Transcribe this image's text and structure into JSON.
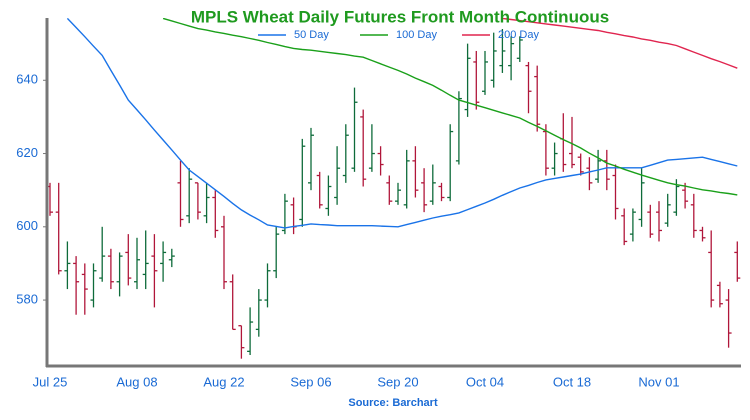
{
  "chart_data": {
    "type": "ohlc",
    "title": "MPLS Wheat Daily Futures Front Month Continuous",
    "source": "Source: Barchart",
    "categories": [
      "Jul 25",
      null,
      null,
      null,
      null,
      null,
      null,
      null,
      null,
      null,
      "Aug 08",
      null,
      null,
      null,
      null,
      null,
      null,
      null,
      null,
      null,
      "Aug 22",
      null,
      null,
      null,
      null,
      null,
      null,
      null,
      null,
      null,
      "Sep 06",
      null,
      null,
      null,
      null,
      null,
      null,
      null,
      null,
      null,
      "Sep 20",
      null,
      null,
      null,
      null,
      null,
      null,
      null,
      null,
      null,
      "Oct 04",
      null,
      null,
      null,
      null,
      null,
      null,
      null,
      null,
      null,
      "Oct 18",
      null,
      null,
      null,
      null,
      null,
      null,
      null,
      null,
      null,
      "Nov 01",
      null,
      null,
      null,
      null,
      null,
      null,
      null,
      null,
      null
    ],
    "ohlc": {
      "up_color": "#0e6b3a",
      "down_color": "#b0163a",
      "open": [
        611,
        604,
        588,
        590,
        587,
        580,
        586,
        592,
        585,
        593,
        585,
        587,
        592,
        590,
        591,
        612,
        603,
        612,
        603,
        608,
        600,
        585,
        573,
        566,
        572,
        580,
        588,
        599,
        606,
        602,
        612,
        614,
        605,
        608,
        614,
        616,
        630,
        616,
        620,
        612,
        607,
        606,
        618,
        612,
        607,
        611,
        608,
        618,
        632,
        645,
        637,
        640,
        644,
        644,
        646,
        644,
        641,
        626,
        616,
        624,
        620,
        619,
        616,
        613,
        618,
        614,
        603,
        598,
        602,
        604,
        604,
        601,
        604,
        610,
        606,
        599,
        593,
        584,
        580,
        593
      ],
      "high": [
        612,
        612,
        596,
        592,
        590,
        590,
        600,
        594,
        593,
        598,
        597,
        599,
        598,
        596,
        594,
        618,
        616,
        612,
        612,
        610,
        603,
        587,
        573,
        578,
        583,
        590,
        600,
        609,
        608,
        624,
        627,
        615,
        614,
        622,
        628,
        638,
        632,
        628,
        622,
        614,
        612,
        621,
        622,
        616,
        617,
        612,
        628,
        637,
        650,
        648,
        648,
        653,
        654,
        652,
        652,
        645,
        644,
        628,
        623,
        631,
        630,
        620,
        619,
        621,
        621,
        617,
        605,
        605,
        616,
        606,
        607,
        609,
        613,
        612,
        609,
        600,
        599,
        585,
        583,
        596
      ],
      "low": [
        603,
        587,
        583,
        576,
        576,
        578,
        585,
        583,
        581,
        584,
        583,
        583,
        578,
        585,
        589,
        600,
        601,
        602,
        601,
        597,
        583,
        572,
        564,
        565,
        570,
        578,
        586,
        598,
        598,
        600,
        610,
        605,
        603,
        606,
        612,
        615,
        611,
        615,
        614,
        606,
        606,
        605,
        608,
        604,
        606,
        607,
        607,
        617,
        630,
        632,
        636,
        638,
        642,
        640,
        645,
        631,
        626,
        614,
        614,
        615,
        616,
        614,
        610,
        612,
        610,
        602,
        595,
        596,
        600,
        597,
        596,
        600,
        603,
        605,
        597,
        596,
        578,
        578,
        567,
        585
      ],
      "close": [
        604,
        588,
        590,
        585,
        583,
        588,
        592,
        585,
        592,
        586,
        591,
        590,
        588,
        593,
        592,
        602,
        613,
        604,
        608,
        599,
        585,
        572,
        567,
        574,
        580,
        588,
        598,
        607,
        600,
        622,
        625,
        606,
        611,
        616,
        625,
        634,
        613,
        620,
        617,
        607,
        610,
        618,
        610,
        606,
        612,
        608,
        626,
        635,
        646,
        634,
        645,
        648,
        648,
        650,
        651,
        637,
        628,
        616,
        620,
        617,
        617,
        615,
        612,
        618,
        613,
        605,
        596,
        604,
        612,
        598,
        599,
        606,
        611,
        607,
        599,
        597,
        580,
        579,
        571,
        586
      ]
    },
    "series": [
      {
        "name": "50 Day",
        "color": "#1a73e8",
        "values": [
          null,
          null,
          656.9,
          654.4,
          651.9,
          649.3,
          646.8,
          642.7,
          638.7,
          634.6,
          631.9,
          629.2,
          626.4,
          623.7,
          621.0,
          618.2,
          615.5,
          613.7,
          611.9,
          610.1,
          608.3,
          606.4,
          604.6,
          603.2,
          601.9,
          600.5,
          600.1,
          599.7,
          600.1,
          600.4,
          600.8,
          600.6,
          600.5,
          600.3,
          600.3,
          600.3,
          600.3,
          600.3,
          600.2,
          600.1,
          600.0,
          600.6,
          601.2,
          601.8,
          602.4,
          602.9,
          603.3,
          603.8,
          604.7,
          605.6,
          606.5,
          607.5,
          608.6,
          609.6,
          610.6,
          611.3,
          612.1,
          612.8,
          613.2,
          613.6,
          614.0,
          614.4,
          615.0,
          615.5,
          616.1,
          616.1,
          616.1,
          616.1,
          616.1,
          616.8,
          617.5,
          618.2,
          618.4,
          618.6,
          618.8,
          619.0,
          618.4,
          617.8,
          617.2,
          616.6
        ]
      },
      {
        "name": "100 Day",
        "color": "#1aa01a",
        "values": [
          null,
          null,
          null,
          null,
          null,
          null,
          null,
          null,
          null,
          null,
          null,
          null,
          null,
          656.9,
          656.2,
          655.5,
          654.8,
          654.1,
          653.7,
          653.2,
          652.8,
          652.3,
          651.9,
          651.4,
          650.9,
          650.3,
          649.8,
          649.2,
          648.7,
          648.4,
          648.2,
          647.9,
          647.6,
          647.3,
          647.0,
          646.6,
          646.3,
          645.4,
          644.5,
          643.6,
          642.7,
          641.7,
          640.6,
          639.6,
          638.6,
          637.3,
          635.9,
          634.6,
          633.9,
          633.2,
          632.5,
          631.8,
          631.1,
          630.4,
          629.7,
          628.5,
          627.4,
          626.2,
          625.0,
          623.8,
          622.7,
          621.5,
          620.1,
          618.8,
          617.4,
          616.6,
          615.7,
          614.9,
          614.1,
          613.4,
          612.7,
          612.0,
          611.5,
          611.1,
          610.6,
          610.1,
          609.8,
          609.4,
          609.1,
          608.7
        ]
      },
      {
        "name": "200 Day",
        "color": "#e0254f",
        "values": [
          null,
          null,
          null,
          null,
          null,
          null,
          null,
          null,
          null,
          null,
          null,
          null,
          null,
          null,
          null,
          null,
          null,
          null,
          null,
          null,
          null,
          null,
          null,
          null,
          null,
          null,
          null,
          null,
          null,
          null,
          null,
          null,
          null,
          null,
          null,
          null,
          null,
          null,
          null,
          null,
          null,
          null,
          null,
          null,
          null,
          null,
          null,
          null,
          null,
          null,
          null,
          null,
          656.9,
          656.6,
          656.3,
          656.0,
          655.7,
          655.4,
          655.1,
          654.8,
          654.5,
          654.2,
          653.9,
          653.6,
          653.1,
          652.7,
          652.2,
          651.8,
          651.3,
          650.9,
          650.4,
          650.0,
          649.5,
          648.6,
          647.7,
          646.8,
          645.9,
          645.1,
          644.2,
          643.3
        ]
      }
    ],
    "ylim": [
      562,
      657
    ],
    "yticks": [
      580,
      600,
      620,
      640
    ]
  }
}
